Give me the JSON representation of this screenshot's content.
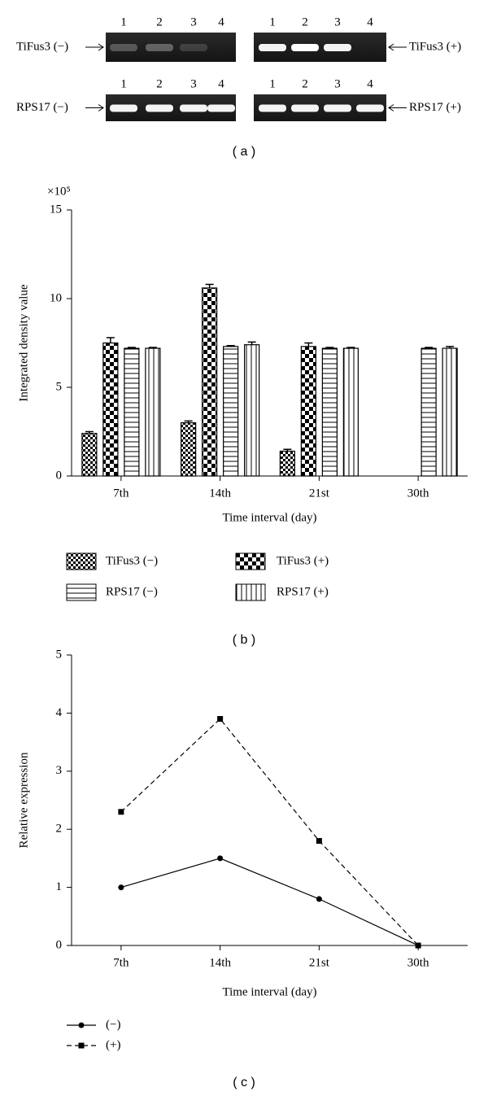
{
  "gel": {
    "caption": "( a )",
    "lanes": [
      "1",
      "2",
      "3",
      "4"
    ],
    "blots": [
      {
        "label": "TiFus3 (−)"
      },
      {
        "label": "TiFus3 (+)"
      },
      {
        "label": "RPS17 (−)"
      },
      {
        "label": "RPS17 (+)"
      }
    ]
  },
  "chart_data": [
    {
      "type": "bar",
      "caption": "( b )",
      "y_label": "Integrated density value",
      "y_multiplier": "×10⁵",
      "x_label": "Time interval (day)",
      "categories": [
        "7th",
        "14th",
        "21st",
        "30th"
      ],
      "ylim": [
        0,
        15
      ],
      "yticks": [
        0,
        5,
        10,
        15
      ],
      "series": [
        {
          "name": "TiFus3 (−)",
          "color": "#000000",
          "pattern": "checker-small",
          "values": [
            2.4,
            3.0,
            1.4,
            null
          ],
          "errors": [
            0.1,
            0.1,
            0.1,
            null
          ]
        },
        {
          "name": "TiFus3 (+)",
          "color": "#000000",
          "pattern": "checker-large",
          "values": [
            7.5,
            10.6,
            7.3,
            null
          ],
          "errors": [
            0.3,
            0.2,
            0.2,
            null
          ]
        },
        {
          "name": "RPS17 (−)",
          "color": "#000000",
          "pattern": "horizontal",
          "values": [
            7.2,
            7.3,
            7.2,
            7.2
          ],
          "errors": [
            0.05,
            0.05,
            0.05,
            0.05
          ]
        },
        {
          "name": "RPS17 (+)",
          "color": "#000000",
          "pattern": "vertical",
          "values": [
            7.2,
            7.4,
            7.2,
            7.2
          ],
          "errors": [
            0.05,
            0.15,
            0.05,
            0.1
          ]
        }
      ]
    },
    {
      "type": "line",
      "caption": "( c )",
      "y_label": "Relative expression",
      "x_label": "Time interval (day)",
      "categories": [
        "7th",
        "14th",
        "21st",
        "30th"
      ],
      "ylim": [
        0,
        5
      ],
      "yticks": [
        0,
        1,
        2,
        3,
        4,
        5
      ],
      "series": [
        {
          "name": "(−)",
          "color": "#000000",
          "marker": "circle",
          "dashed": false,
          "values": [
            1,
            1.5,
            0.8,
            0
          ]
        },
        {
          "name": "(+)",
          "color": "#000000",
          "marker": "square",
          "dashed": true,
          "values": [
            2.3,
            3.9,
            1.8,
            0
          ]
        }
      ]
    }
  ]
}
